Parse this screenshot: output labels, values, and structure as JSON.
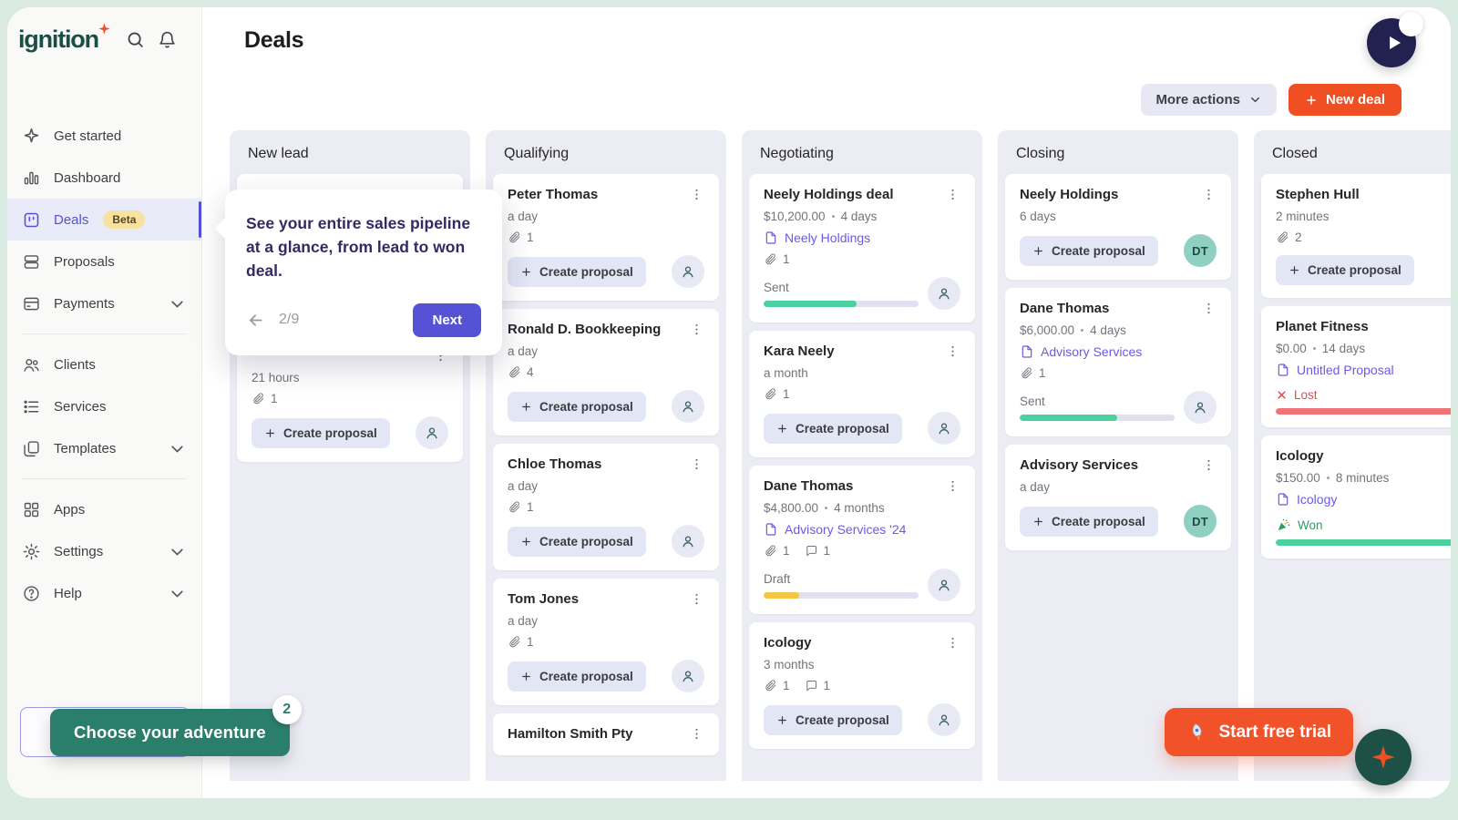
{
  "app": {
    "logo_text": "ignition",
    "page_title": "Deals"
  },
  "sidebar": {
    "groups": [
      {
        "items": [
          {
            "label": "Get started",
            "icon": "get-started"
          },
          {
            "label": "Dashboard",
            "icon": "dashboard"
          },
          {
            "label": "Deals",
            "icon": "deals",
            "active": true,
            "badge": "Beta"
          },
          {
            "label": "Proposals",
            "icon": "proposals"
          },
          {
            "label": "Payments",
            "icon": "payments",
            "chevron": true
          }
        ]
      },
      {
        "items": [
          {
            "label": "Clients",
            "icon": "clients"
          },
          {
            "label": "Services",
            "icon": "services"
          },
          {
            "label": "Templates",
            "icon": "templates",
            "chevron": true
          }
        ]
      },
      {
        "items": [
          {
            "label": "Apps",
            "icon": "apps"
          },
          {
            "label": "Settings",
            "icon": "settings",
            "chevron": true
          },
          {
            "label": "Help",
            "icon": "help",
            "chevron": true
          }
        ]
      }
    ]
  },
  "toolbar": {
    "more_actions_label": "More actions",
    "new_deal_label": "New deal"
  },
  "tooltip": {
    "text": "See your entire sales pipeline at a glance, from lead to won deal.",
    "step": "2/9",
    "next_label": "Next"
  },
  "board": {
    "create_proposal_label": "Create proposal",
    "columns": [
      {
        "name": "New lead",
        "cards": [
          {
            "title": "",
            "obscured": true
          },
          {
            "title": "",
            "duration": "21 hours",
            "attachments": 1,
            "action": "create",
            "avatar": "person"
          }
        ]
      },
      {
        "name": "Qualifying",
        "cards": [
          {
            "title": "Peter Thomas",
            "duration": "a day",
            "attachments": 1,
            "action": "create",
            "avatar": "person"
          },
          {
            "title": "Ronald D. Bookkeeping",
            "duration": "a day",
            "attachments": 4,
            "action": "create",
            "avatar": "person"
          },
          {
            "title": "Chloe Thomas",
            "duration": "a day",
            "attachments": 1,
            "action": "create",
            "avatar": "person"
          },
          {
            "title": "Tom Jones",
            "duration": "a day",
            "attachments": 1,
            "action": "create",
            "avatar": "person"
          },
          {
            "title": "Hamilton Smith Pty"
          }
        ]
      },
      {
        "name": "Negotiating",
        "cards": [
          {
            "title": "Neely Holdings deal",
            "amount": "$10,200.00",
            "duration": "4 days",
            "link": "Neely Holdings",
            "attachments": 1,
            "status": {
              "label": "Sent",
              "color": "#4bd0a0",
              "progress": 60
            },
            "avatar": "person"
          },
          {
            "title": "Kara Neely",
            "duration": "a month",
            "attachments": 1,
            "action": "create",
            "avatar": "person"
          },
          {
            "title": "Dane Thomas",
            "amount": "$4,800.00",
            "duration": "4 months",
            "link": "Advisory Services '24",
            "attachments": 1,
            "comments": 1,
            "status": {
              "label": "Draft",
              "color": "#f6c544",
              "progress": 23
            },
            "avatar": "person"
          },
          {
            "title": "Icology",
            "duration": "3 months",
            "attachments": 1,
            "comments": 1,
            "action": "create",
            "avatar": "person"
          }
        ]
      },
      {
        "name": "Closing",
        "cards": [
          {
            "title": "Neely Holdings",
            "duration": "6 days",
            "action": "create",
            "avatar": "DT"
          },
          {
            "title": "Dane Thomas",
            "amount": "$6,000.00",
            "duration": "4 days",
            "link": "Advisory Services",
            "attachments": 1,
            "status": {
              "label": "Sent",
              "color": "#4bd0a0",
              "progress": 63
            },
            "avatar": "person"
          },
          {
            "title": "Advisory Services",
            "duration": "a day",
            "action": "create",
            "avatar": "DT"
          }
        ]
      },
      {
        "name": "Closed",
        "cards": [
          {
            "title": "Stephen Hull",
            "duration": "2 minutes",
            "attachments": 2,
            "action": "create"
          },
          {
            "title": "Planet Fitness",
            "amount": "$0.00",
            "duration": "14 days",
            "link": "Untitled Proposal",
            "status": {
              "label": "Lost",
              "color": "#f17373",
              "progress": 100,
              "icon": "lost-x",
              "text_color": "#e5484d"
            }
          },
          {
            "title": "Icology",
            "amount": "$150.00",
            "duration": "8 minutes",
            "link": "Icology",
            "status": {
              "label": "Won",
              "color": "#4bd0a0",
              "progress": 100,
              "icon": "party",
              "text_color": "#2f9e63"
            }
          }
        ]
      }
    ]
  },
  "floating": {
    "adventure_label": "Choose your adventure",
    "adventure_badge": "2",
    "trial_label": "Start free trial"
  },
  "colors": {
    "accent_purple": "#5652d5",
    "link_purple": "#6a5be2",
    "brand_orange": "#f04e23",
    "brand_teal": "#2b7d6c",
    "sent_green": "#4bd0a0",
    "draft_yellow": "#f6c544",
    "lost_red": "#e5484d",
    "won_green": "#2f9e63",
    "avatar_teal": "#8fd0c2",
    "beta_badge_bg": "#f8e2a0"
  }
}
